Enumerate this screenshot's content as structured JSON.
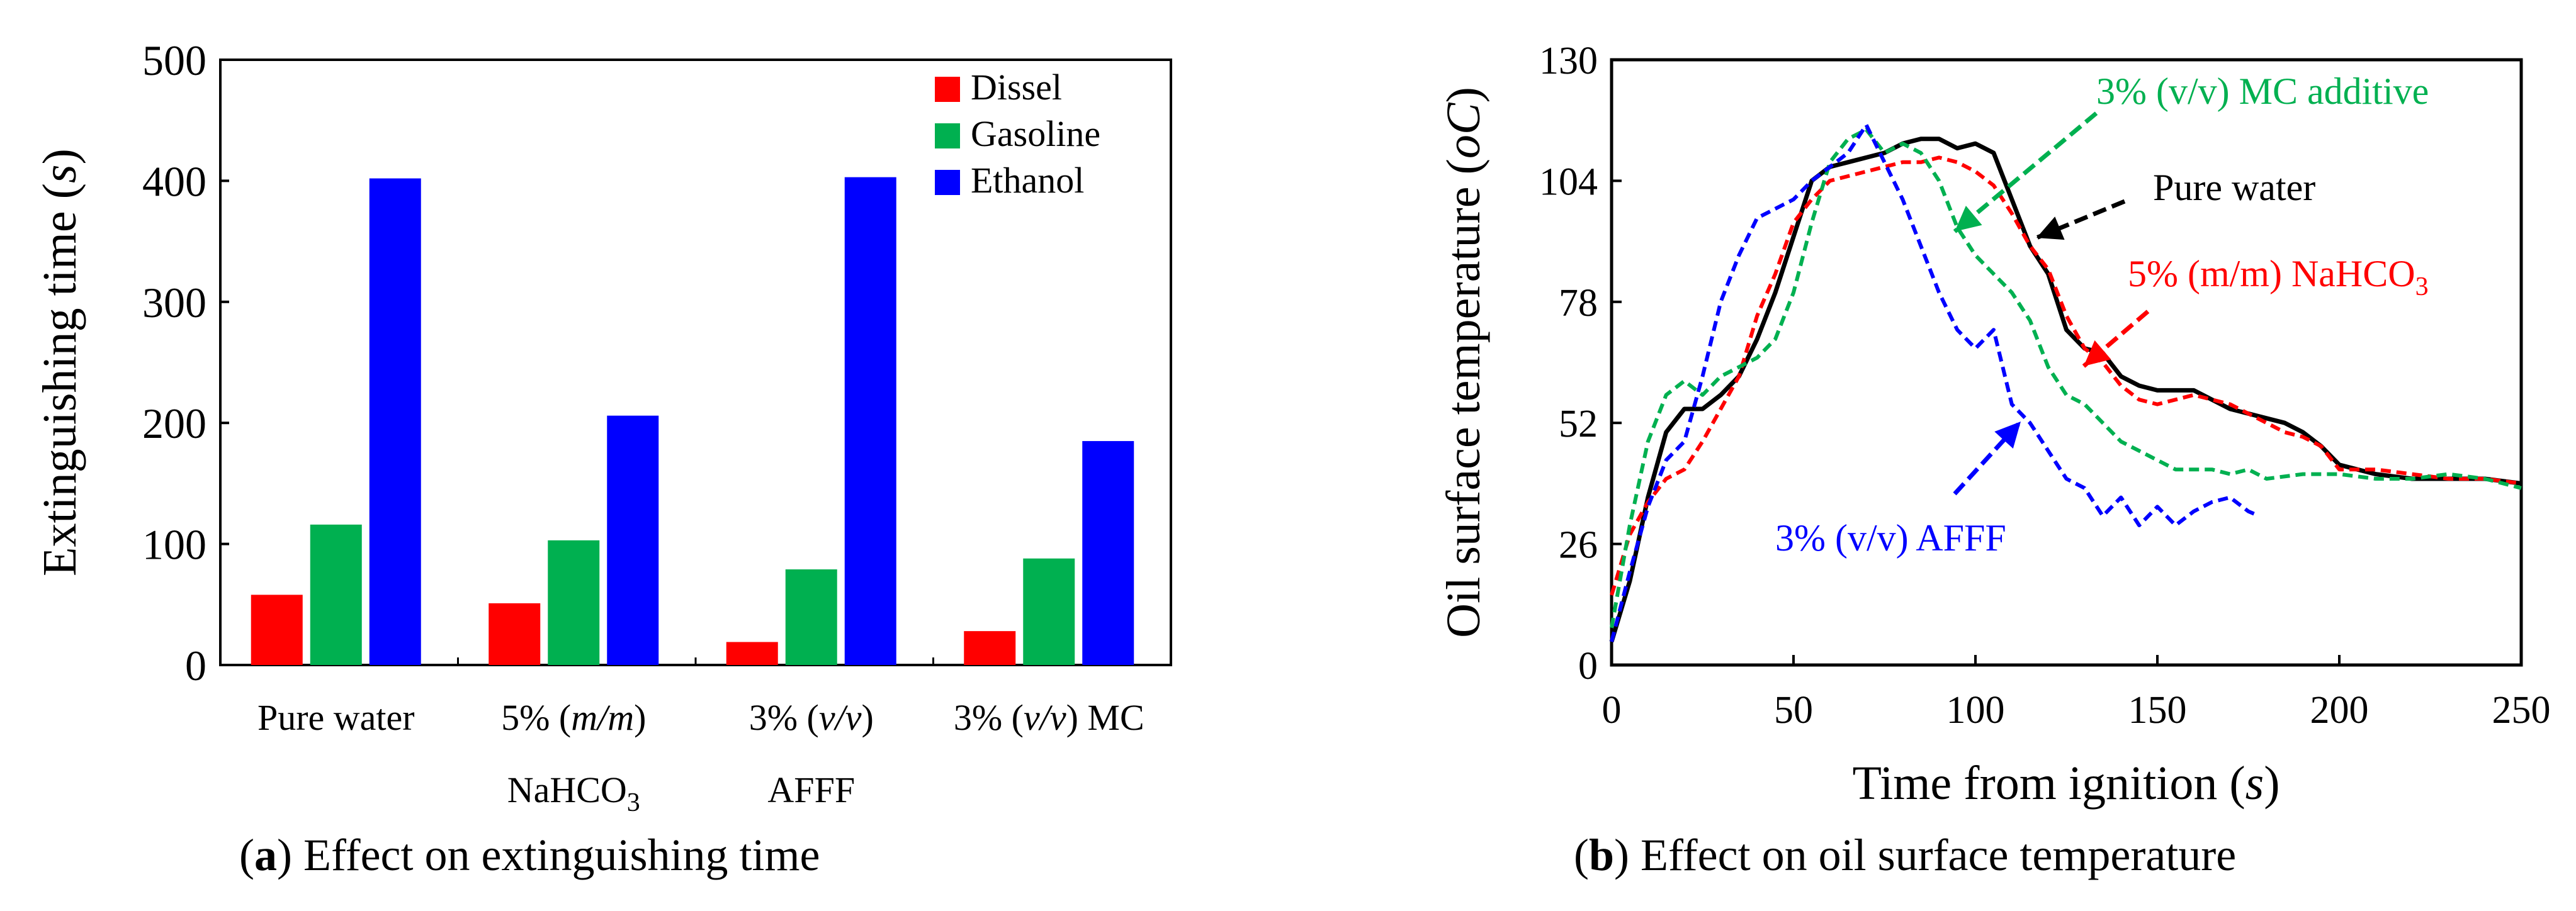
{
  "chart_data": [
    {
      "type": "bar",
      "panel": "a",
      "caption_letter": "a",
      "caption_text": "Effect on extinguishing time",
      "ylabel": "Extinguishing time (s)",
      "ylabel_text": "Extinguishing time (",
      "ylabel_var": "s",
      "ylabel_close": ")",
      "ylim": [
        0,
        500
      ],
      "yticks": [
        "0",
        "100",
        "200",
        "300",
        "400",
        "500"
      ],
      "categories": [
        {
          "line1": "Pure water",
          "line2": ""
        },
        {
          "line1": "5% (m/m)",
          "line2": "NaHCO3"
        },
        {
          "line1": "3% (v/v)",
          "line2": "AFFF"
        },
        {
          "line1": "3% (v/v) MC",
          "line2": ""
        }
      ],
      "series": [
        {
          "name": "Dissel",
          "color": "#ff0000",
          "values": [
            58,
            51,
            19,
            28
          ]
        },
        {
          "name": "Gasoline",
          "color": "#00b050",
          "values": [
            116,
            103,
            79,
            88
          ]
        },
        {
          "name": "Ethanol",
          "color": "#0000ff",
          "values": [
            402,
            206,
            403,
            185
          ]
        }
      ],
      "legend_position": "top-right"
    },
    {
      "type": "line",
      "panel": "b",
      "caption_letter": "b",
      "caption_text": "Effect on oil surface temperature",
      "xlabel": "Time from ignition (s)",
      "ylabel": "Oil surface temperature (oC)",
      "xlim": [
        0,
        250
      ],
      "ylim": [
        0,
        130
      ],
      "xticks": [
        "0",
        "50",
        "100",
        "150",
        "200",
        "250"
      ],
      "yticks": [
        "0",
        "26",
        "52",
        "78",
        "104",
        "130"
      ],
      "series": [
        {
          "name": "Pure water",
          "color": "#000000",
          "dash": "solid",
          "x": [
            0,
            5,
            10,
            15,
            20,
            25,
            30,
            35,
            40,
            45,
            50,
            55,
            60,
            65,
            70,
            75,
            80,
            85,
            90,
            95,
            100,
            105,
            110,
            115,
            120,
            125,
            130,
            135,
            140,
            145,
            150,
            155,
            160,
            165,
            170,
            175,
            180,
            185,
            190,
            195,
            200,
            210,
            220,
            230,
            240,
            250
          ],
          "y": [
            5,
            18,
            36,
            50,
            55,
            55,
            58,
            62,
            70,
            80,
            92,
            104,
            107,
            108,
            109,
            110,
            112,
            113,
            113,
            111,
            112,
            110,
            100,
            90,
            84,
            72,
            68,
            67,
            62,
            60,
            59,
            59,
            59,
            57,
            55,
            54,
            53,
            52,
            50,
            47,
            43,
            41,
            40,
            40,
            40,
            39
          ]
        },
        {
          "name": "5% (m/m) NaHCO3",
          "color": "#ff0000",
          "dash": "dashed",
          "x": [
            0,
            5,
            10,
            15,
            20,
            25,
            30,
            35,
            40,
            45,
            50,
            55,
            60,
            65,
            70,
            75,
            80,
            85,
            90,
            95,
            100,
            105,
            110,
            115,
            120,
            125,
            130,
            135,
            140,
            145,
            150,
            155,
            160,
            165,
            170,
            175,
            180,
            185,
            190,
            195,
            200,
            210,
            220,
            230,
            240,
            250
          ],
          "y": [
            15,
            28,
            35,
            40,
            42,
            48,
            55,
            62,
            75,
            84,
            95,
            100,
            104,
            105,
            106,
            107,
            108,
            108,
            109,
            108,
            106,
            103,
            97,
            90,
            85,
            75,
            68,
            65,
            60,
            57,
            56,
            57,
            58,
            57,
            56,
            54,
            52,
            50,
            49,
            47,
            42,
            42,
            41,
            40,
            40,
            39
          ]
        },
        {
          "name": "3% (v/v) MC additive",
          "color": "#00b050",
          "dash": "dashed",
          "x": [
            0,
            5,
            10,
            15,
            20,
            25,
            30,
            35,
            40,
            45,
            50,
            55,
            60,
            65,
            70,
            75,
            80,
            85,
            90,
            95,
            100,
            105,
            110,
            115,
            120,
            125,
            130,
            135,
            140,
            145,
            150,
            155,
            160,
            165,
            170,
            175,
            180,
            190,
            200,
            210,
            220,
            230,
            240,
            250
          ],
          "y": [
            8,
            30,
            48,
            58,
            61,
            58,
            62,
            64,
            66,
            70,
            80,
            95,
            108,
            113,
            115,
            110,
            112,
            110,
            104,
            94,
            88,
            84,
            80,
            74,
            64,
            58,
            56,
            52,
            48,
            46,
            44,
            42,
            42,
            42,
            41,
            42,
            40,
            41,
            41,
            40,
            40,
            41,
            40,
            38
          ]
        },
        {
          "name": "3% (v/v) AFFF",
          "color": "#0000ff",
          "dash": "dashed",
          "x": [
            0,
            5,
            10,
            15,
            20,
            25,
            30,
            35,
            40,
            45,
            50,
            55,
            60,
            65,
            70,
            75,
            80,
            85,
            90,
            95,
            100,
            105,
            110,
            115,
            120,
            125,
            130,
            135,
            140,
            145,
            150,
            155,
            160,
            165,
            170,
            175,
            178
          ],
          "y": [
            5,
            20,
            34,
            44,
            48,
            62,
            78,
            88,
            96,
            98,
            100,
            104,
            107,
            110,
            116,
            108,
            100,
            90,
            80,
            72,
            68,
            72,
            56,
            52,
            46,
            40,
            38,
            32,
            36,
            30,
            34,
            30,
            33,
            35,
            36,
            33,
            32
          ]
        }
      ],
      "annotations": [
        {
          "text": "3% (v/v) MC additive",
          "color": "#00b050"
        },
        {
          "text": "Pure water",
          "color": "#000000"
        },
        {
          "text_main": "5% (m/m) NaHCO",
          "text_sub": "3",
          "color": "#ff0000"
        },
        {
          "text": "3% (v/v) AFFF",
          "color": "#0000ff"
        }
      ]
    }
  ]
}
